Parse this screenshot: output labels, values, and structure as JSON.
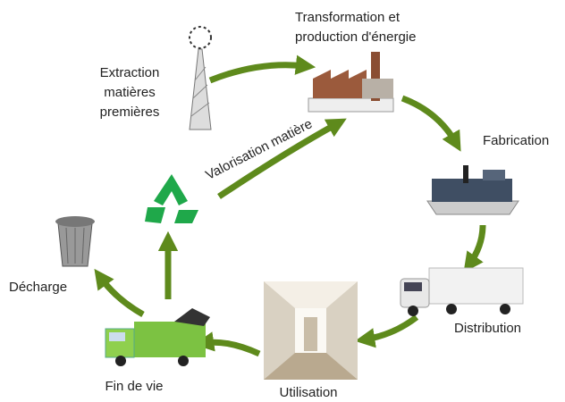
{
  "nodes": [
    {
      "label": [
        "Extraction",
        "matières",
        "premières"
      ]
    },
    {
      "label": [
        "Transformation et",
        "production d'énergie"
      ]
    },
    {
      "label": [
        "Fabrication"
      ]
    },
    {
      "label": [
        "Distribution"
      ]
    },
    {
      "label": [
        "Utilisation"
      ]
    },
    {
      "label": [
        "Fin de vie"
      ]
    },
    {
      "label": [
        "Décharge"
      ]
    }
  ],
  "edge_label": "Valorisation matière"
}
